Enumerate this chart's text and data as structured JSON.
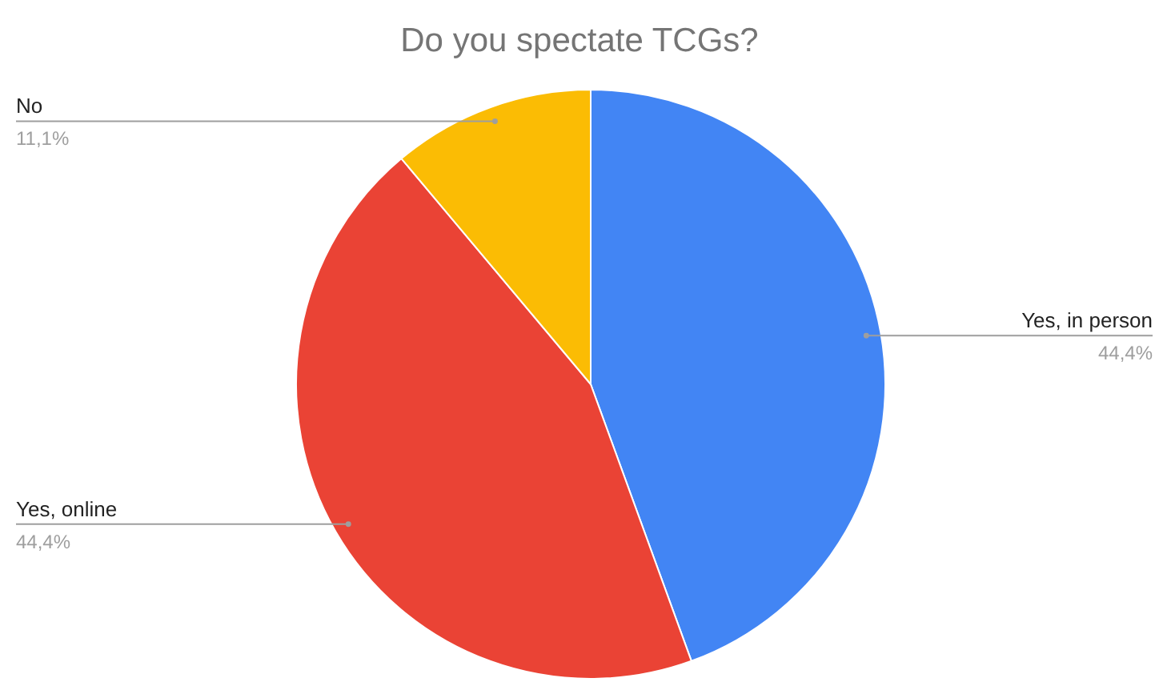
{
  "chart_data": {
    "type": "pie",
    "title": "Do you spectate TCGs?",
    "categories": [
      "Yes, in person",
      "Yes, online",
      "No"
    ],
    "values": [
      44.4,
      44.4,
      11.1
    ],
    "colors": [
      "#4285f4",
      "#ea4335",
      "#fbbc04"
    ],
    "value_labels": [
      "44,4%",
      "44,4%",
      "11,1%"
    ]
  }
}
